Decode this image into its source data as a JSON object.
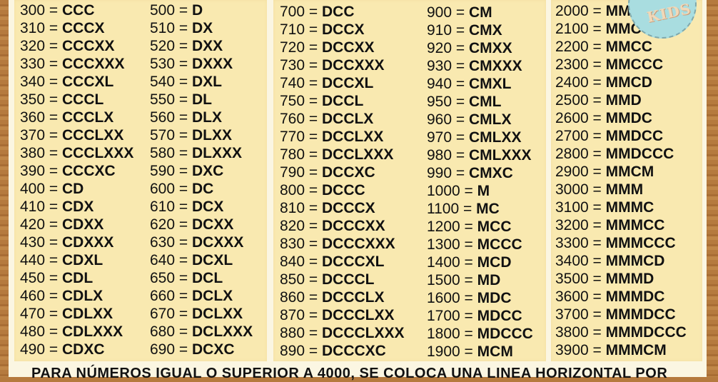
{
  "logo_text": "KIDS",
  "columns": [
    [
      [
        "300",
        "CCC"
      ],
      [
        "310",
        "CCCX"
      ],
      [
        "320",
        "CCCXX"
      ],
      [
        "330",
        "CCCXXX"
      ],
      [
        "340",
        "CCCXL"
      ],
      [
        "350",
        "CCCL"
      ],
      [
        "360",
        "CCCLX"
      ],
      [
        "370",
        "CCCLXX"
      ],
      [
        "380",
        "CCCLXXX"
      ],
      [
        "390",
        "CCCXC"
      ],
      [
        "400",
        "CD"
      ],
      [
        "410",
        "CDX"
      ],
      [
        "420",
        "CDXX"
      ],
      [
        "430",
        "CDXXX"
      ],
      [
        "440",
        "CDXL"
      ],
      [
        "450",
        "CDL"
      ],
      [
        "460",
        "CDLX"
      ],
      [
        "470",
        "CDLXX"
      ],
      [
        "480",
        "CDLXXX"
      ],
      [
        "490",
        "CDXC"
      ]
    ],
    [
      [
        "500",
        "D"
      ],
      [
        "510",
        "DX"
      ],
      [
        "520",
        "DXX"
      ],
      [
        "530",
        "DXXX"
      ],
      [
        "540",
        "DXL"
      ],
      [
        "550",
        "DL"
      ],
      [
        "560",
        "DLX"
      ],
      [
        "570",
        "DLXX"
      ],
      [
        "580",
        "DLXXX"
      ],
      [
        "590",
        "DXC"
      ],
      [
        "600",
        "DC"
      ],
      [
        "610",
        "DCX"
      ],
      [
        "620",
        "DCXX"
      ],
      [
        "630",
        "DCXXX"
      ],
      [
        "640",
        "DCXL"
      ],
      [
        "650",
        "DCL"
      ],
      [
        "660",
        "DCLX"
      ],
      [
        "670",
        "DCLXX"
      ],
      [
        "680",
        "DCLXXX"
      ],
      [
        "690",
        "DCXC"
      ]
    ],
    [
      [
        "700",
        "DCC"
      ],
      [
        "710",
        "DCCX"
      ],
      [
        "720",
        "DCCXX"
      ],
      [
        "730",
        "DCCXXX"
      ],
      [
        "740",
        "DCCXL"
      ],
      [
        "750",
        "DCCL"
      ],
      [
        "760",
        "DCCLX"
      ],
      [
        "770",
        "DCCLXX"
      ],
      [
        "780",
        "DCCLXXX"
      ],
      [
        "790",
        "DCCXC"
      ],
      [
        "800",
        "DCCC"
      ],
      [
        "810",
        "DCCCX"
      ],
      [
        "820",
        "DCCCXX"
      ],
      [
        "830",
        "DCCCXXX"
      ],
      [
        "840",
        "DCCCXL"
      ],
      [
        "850",
        "DCCCL"
      ],
      [
        "860",
        "DCCCLX"
      ],
      [
        "870",
        "DCCCLXX"
      ],
      [
        "880",
        "DCCCLXXX"
      ],
      [
        "890",
        "DCCCXC"
      ]
    ],
    [
      [
        "900",
        "CM"
      ],
      [
        "910",
        "CMX"
      ],
      [
        "920",
        "CMXX"
      ],
      [
        "930",
        "CMXXX"
      ],
      [
        "940",
        "CMXL"
      ],
      [
        "950",
        "CML"
      ],
      [
        "960",
        "CMLX"
      ],
      [
        "970",
        "CMLXX"
      ],
      [
        "980",
        "CMLXXX"
      ],
      [
        "990",
        "CMXC"
      ],
      [
        "1000",
        "M"
      ],
      [
        "1100",
        "MC"
      ],
      [
        "1200",
        "MCC"
      ],
      [
        "1300",
        "MCCC"
      ],
      [
        "1400",
        "MCD"
      ],
      [
        "1500",
        "MD"
      ],
      [
        "1600",
        "MDC"
      ],
      [
        "1700",
        "MDCC"
      ],
      [
        "1800",
        "MDCCC"
      ],
      [
        "1900",
        "MCM"
      ]
    ],
    [
      [
        "2000",
        "MM"
      ],
      [
        "2100",
        "MMC"
      ],
      [
        "2200",
        "MMCC"
      ],
      [
        "2300",
        "MMCCC"
      ],
      [
        "2400",
        "MMCD"
      ],
      [
        "2500",
        "MMD"
      ],
      [
        "2600",
        "MMDC"
      ],
      [
        "2700",
        "MMDCC"
      ],
      [
        "2800",
        "MMDCCC"
      ],
      [
        "2900",
        "MMCM"
      ],
      [
        "3000",
        "MMM"
      ],
      [
        "3100",
        "MMMC"
      ],
      [
        "3200",
        "MMMCC"
      ],
      [
        "3300",
        "MMMCCC"
      ],
      [
        "3400",
        "MMMCD"
      ],
      [
        "3500",
        "MMMD"
      ],
      [
        "3600",
        "MMMDC"
      ],
      [
        "3700",
        "MMMDCC"
      ],
      [
        "3800",
        "MMMDCCC"
      ],
      [
        "3900",
        "MMMCM"
      ]
    ]
  ],
  "footer_note": "PARA NÚMEROS IGUAL O SUPERIOR A 4000, SE COLOCA UNA LINEA HORIZONTAL POR",
  "colors": {
    "panel": "#f9e9b0",
    "paper": "#fbf6e2",
    "frame": "#b57a3e",
    "logo": "#a9dde0"
  }
}
